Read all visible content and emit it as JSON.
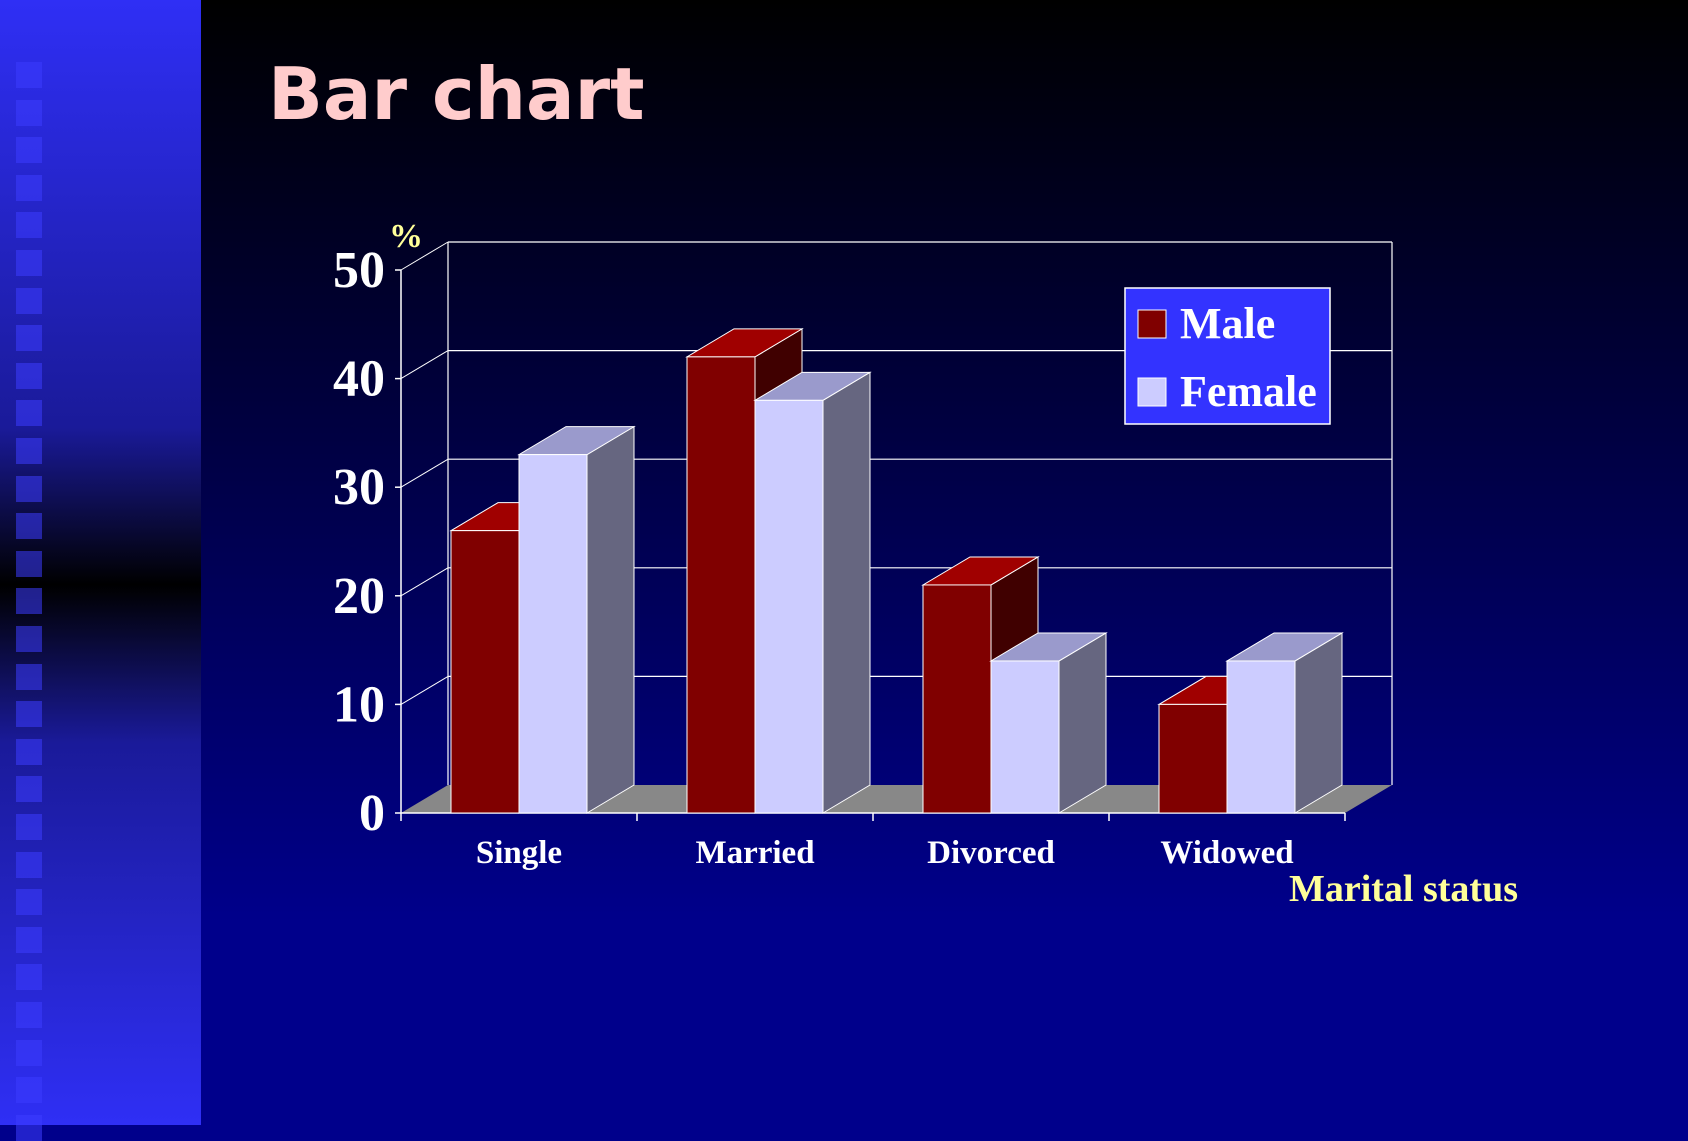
{
  "slide": {
    "title": "Bar chart"
  },
  "colors": {
    "male": "#800000",
    "male_top": "#a00000",
    "male_side": "#400000",
    "female": "#ccccff",
    "female_top": "#9a9acc",
    "female_side": "#666680",
    "legend_bg": "#3333ff",
    "axis_label": "#ffff99",
    "floor": "#888888"
  },
  "chart_data": {
    "type": "bar",
    "categories": [
      "Single",
      "Married",
      "Divorced",
      "Widowed"
    ],
    "series": [
      {
        "name": "Male",
        "values": [
          26,
          42,
          21,
          10
        ]
      },
      {
        "name": "Female",
        "values": [
          33,
          38,
          14,
          14
        ]
      }
    ],
    "xlabel": "Marital status",
    "ylabel": "%",
    "ylim": [
      0,
      50
    ],
    "yticks": [
      0,
      10,
      20,
      30,
      40,
      50
    ],
    "grid": true,
    "legend_position": "top-right",
    "style": "3d-clustered"
  }
}
